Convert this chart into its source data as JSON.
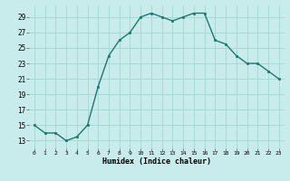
{
  "x": [
    0,
    1,
    2,
    3,
    4,
    5,
    6,
    7,
    8,
    9,
    10,
    11,
    12,
    13,
    14,
    15,
    16,
    17,
    18,
    19,
    20,
    21,
    22,
    23
  ],
  "y": [
    15,
    14,
    14,
    13,
    13.5,
    15,
    20,
    24,
    26,
    27,
    29,
    29.5,
    29,
    28.5,
    29,
    29.5,
    29.5,
    26,
    25.5,
    24,
    23,
    23,
    22,
    21
  ],
  "line_color": "#1a7a6e",
  "marker_color": "#1a7a6e",
  "bg_color": "#c8ecec",
  "grid_color": "#aad8d8",
  "xlabel": "Humidex (Indice chaleur)",
  "ylim_min": 12,
  "ylim_max": 30.5,
  "xlim_min": -0.5,
  "xlim_max": 23.5,
  "yticks": [
    13,
    15,
    17,
    19,
    21,
    23,
    25,
    27,
    29
  ],
  "xticks": [
    0,
    1,
    2,
    3,
    4,
    5,
    6,
    7,
    8,
    9,
    10,
    11,
    12,
    13,
    14,
    15,
    16,
    17,
    18,
    19,
    20,
    21,
    22,
    23
  ]
}
